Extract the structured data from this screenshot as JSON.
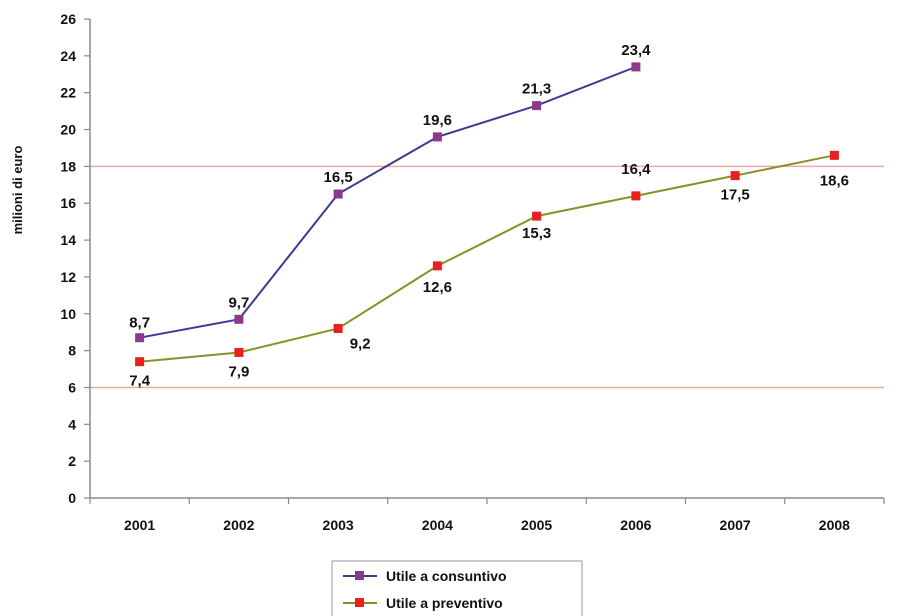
{
  "chart_data": {
    "type": "line",
    "ylabel": "milioni di euro",
    "xlabel": "",
    "title": "",
    "categories": [
      "2001",
      "2002",
      "2003",
      "2004",
      "2005",
      "2006",
      "2007",
      "2008"
    ],
    "ylim": [
      0,
      26
    ],
    "yticks": [
      0,
      2,
      4,
      6,
      8,
      10,
      12,
      14,
      16,
      18,
      20,
      22,
      24,
      26
    ],
    "grid": false,
    "reference_lines": [
      6,
      18
    ],
    "reference_line_color": "#f4a6a6",
    "legend_position": "bottom",
    "series": [
      {
        "name": "Utile a consuntivo",
        "color": "#3b3b8f",
        "marker_color": "#8b3a8b",
        "values": [
          8.7,
          9.7,
          16.5,
          19.6,
          21.3,
          23.4,
          null,
          null
        ],
        "labels": [
          "8,7",
          "9,7",
          "16,5",
          "19,6",
          "21,3",
          "23,4",
          "",
          ""
        ]
      },
      {
        "name": "Utile a preventivo",
        "color": "#8a8f2a",
        "marker_color": "#e8201e",
        "values": [
          7.4,
          7.9,
          9.2,
          12.6,
          15.3,
          16.4,
          17.5,
          18.6
        ],
        "labels": [
          "7,4",
          "7,9",
          "9,2",
          "12,6",
          "15,3",
          "16,4",
          "17,5",
          "18,6"
        ]
      }
    ]
  }
}
